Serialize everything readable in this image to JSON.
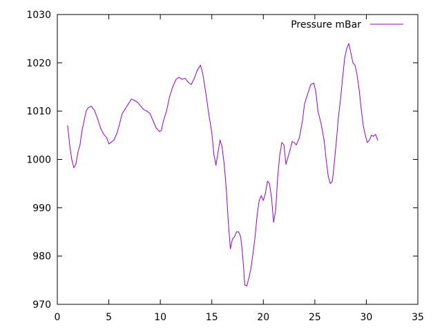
{
  "chart_data": {
    "type": "line",
    "title": "",
    "xlabel": "",
    "ylabel": "",
    "xlim": [
      0,
      35
    ],
    "ylim": [
      970,
      1030
    ],
    "xticks": [
      0,
      5,
      10,
      15,
      20,
      25,
      30,
      35
    ],
    "yticks": [
      970,
      980,
      990,
      1000,
      1010,
      1020,
      1030
    ],
    "grid": false,
    "legend_position": "top-right",
    "series": [
      {
        "name": "Pressure mBar",
        "color": "#9400d3",
        "points": [
          [
            1.0,
            1007.0
          ],
          [
            1.2,
            1003.0
          ],
          [
            1.4,
            1000.0
          ],
          [
            1.6,
            998.3
          ],
          [
            1.8,
            999.0
          ],
          [
            2.0,
            1001.5
          ],
          [
            2.2,
            1003.0
          ],
          [
            2.4,
            1006.0
          ],
          [
            2.6,
            1008.0
          ],
          [
            2.8,
            1010.0
          ],
          [
            3.0,
            1010.7
          ],
          [
            3.3,
            1011.0
          ],
          [
            3.6,
            1010.2
          ],
          [
            3.9,
            1008.5
          ],
          [
            4.2,
            1006.5
          ],
          [
            4.5,
            1005.2
          ],
          [
            4.8,
            1004.5
          ],
          [
            5.0,
            1003.2
          ],
          [
            5.2,
            1003.5
          ],
          [
            5.5,
            1004.0
          ],
          [
            5.8,
            1005.5
          ],
          [
            6.0,
            1007.0
          ],
          [
            6.3,
            1009.5
          ],
          [
            6.6,
            1010.5
          ],
          [
            6.9,
            1011.5
          ],
          [
            7.2,
            1012.5
          ],
          [
            7.5,
            1012.2
          ],
          [
            7.8,
            1011.8
          ],
          [
            8.1,
            1011.0
          ],
          [
            8.4,
            1010.3
          ],
          [
            8.7,
            1010.0
          ],
          [
            9.0,
            1009.5
          ],
          [
            9.3,
            1008.0
          ],
          [
            9.6,
            1006.5
          ],
          [
            9.9,
            1005.8
          ],
          [
            10.1,
            1006.0
          ],
          [
            10.3,
            1008.0
          ],
          [
            10.6,
            1010.0
          ],
          [
            10.9,
            1013.0
          ],
          [
            11.2,
            1015.0
          ],
          [
            11.5,
            1016.5
          ],
          [
            11.8,
            1017.0
          ],
          [
            12.1,
            1016.6
          ],
          [
            12.4,
            1016.8
          ],
          [
            12.7,
            1016.0
          ],
          [
            13.0,
            1015.5
          ],
          [
            13.3,
            1016.8
          ],
          [
            13.6,
            1018.5
          ],
          [
            13.9,
            1019.5
          ],
          [
            14.1,
            1018.0
          ],
          [
            14.4,
            1014.0
          ],
          [
            14.7,
            1009.5
          ],
          [
            15.0,
            1005.5
          ],
          [
            15.2,
            1001.0
          ],
          [
            15.4,
            998.8
          ],
          [
            15.6,
            1001.5
          ],
          [
            15.8,
            1004.0
          ],
          [
            16.0,
            1002.5
          ],
          [
            16.2,
            999.0
          ],
          [
            16.4,
            994.0
          ],
          [
            16.6,
            987.0
          ],
          [
            16.8,
            981.5
          ],
          [
            17.0,
            983.5
          ],
          [
            17.2,
            984.0
          ],
          [
            17.4,
            985.0
          ],
          [
            17.6,
            985.0
          ],
          [
            17.8,
            984.0
          ],
          [
            18.0,
            980.0
          ],
          [
            18.2,
            974.0
          ],
          [
            18.4,
            973.8
          ],
          [
            18.6,
            975.5
          ],
          [
            18.8,
            977.5
          ],
          [
            19.0,
            980.5
          ],
          [
            19.2,
            984.0
          ],
          [
            19.4,
            988.5
          ],
          [
            19.6,
            991.5
          ],
          [
            19.8,
            992.5
          ],
          [
            20.0,
            991.5
          ],
          [
            20.2,
            993.0
          ],
          [
            20.4,
            995.5
          ],
          [
            20.6,
            995.0
          ],
          [
            20.8,
            992.0
          ],
          [
            21.0,
            987.0
          ],
          [
            21.2,
            989.5
          ],
          [
            21.4,
            996.5
          ],
          [
            21.6,
            1001.0
          ],
          [
            21.8,
            1003.5
          ],
          [
            22.0,
            1003.0
          ],
          [
            22.2,
            999.0
          ],
          [
            22.4,
            1000.5
          ],
          [
            22.6,
            1002.0
          ],
          [
            22.8,
            1003.7
          ],
          [
            23.0,
            1003.5
          ],
          [
            23.2,
            1003.0
          ],
          [
            23.5,
            1004.5
          ],
          [
            23.8,
            1008.0
          ],
          [
            24.0,
            1011.5
          ],
          [
            24.3,
            1013.5
          ],
          [
            24.6,
            1015.5
          ],
          [
            24.9,
            1015.8
          ],
          [
            25.1,
            1014.0
          ],
          [
            25.3,
            1010.0
          ],
          [
            25.6,
            1007.5
          ],
          [
            25.9,
            1004.0
          ],
          [
            26.1,
            1000.0
          ],
          [
            26.3,
            996.5
          ],
          [
            26.5,
            995.0
          ],
          [
            26.7,
            995.5
          ],
          [
            26.9,
            999.5
          ],
          [
            27.1,
            1004.0
          ],
          [
            27.3,
            1009.0
          ],
          [
            27.5,
            1012.5
          ],
          [
            27.7,
            1017.0
          ],
          [
            27.9,
            1021.0
          ],
          [
            28.1,
            1023.0
          ],
          [
            28.3,
            1024.0
          ],
          [
            28.5,
            1022.0
          ],
          [
            28.7,
            1020.0
          ],
          [
            28.9,
            1019.5
          ],
          [
            29.1,
            1017.5
          ],
          [
            29.3,
            1014.5
          ],
          [
            29.5,
            1010.5
          ],
          [
            29.7,
            1007.0
          ],
          [
            29.9,
            1005.0
          ],
          [
            30.1,
            1003.5
          ],
          [
            30.3,
            1004.0
          ],
          [
            30.5,
            1005.0
          ],
          [
            30.7,
            1004.8
          ],
          [
            30.9,
            1005.2
          ],
          [
            31.1,
            1004.0
          ]
        ]
      }
    ]
  }
}
